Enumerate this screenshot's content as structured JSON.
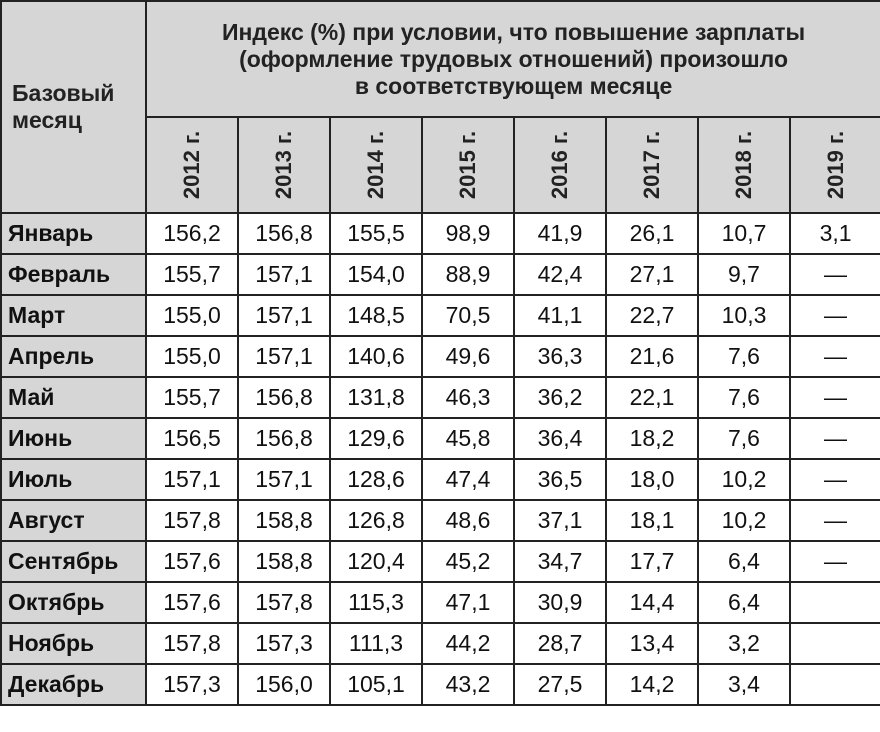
{
  "table": {
    "title_lines": [
      "Индекс (%) при условии, что повышение зарплаты",
      "(оформление трудовых отношений) произошло",
      "в соответствующем месяце"
    ],
    "base_month_lines": [
      "Базовый",
      "месяц"
    ],
    "years": [
      "2012 г.",
      "2013 г.",
      "2014 г.",
      "2015 г.",
      "2016 г.",
      "2017 г.",
      "2018 г.",
      "2019 г."
    ],
    "rows": [
      {
        "month": "Январь",
        "values": [
          "156,2",
          "156,8",
          "155,5",
          "98,9",
          "41,9",
          "26,1",
          "10,7",
          "3,1"
        ]
      },
      {
        "month": "Февраль",
        "values": [
          "155,7",
          "157,1",
          "154,0",
          "88,9",
          "42,4",
          "27,1",
          "9,7",
          "—"
        ]
      },
      {
        "month": "Март",
        "values": [
          "155,0",
          "157,1",
          "148,5",
          "70,5",
          "41,1",
          "22,7",
          "10,3",
          "—"
        ]
      },
      {
        "month": "Апрель",
        "values": [
          "155,0",
          "157,1",
          "140,6",
          "49,6",
          "36,3",
          "21,6",
          "7,6",
          "—"
        ]
      },
      {
        "month": "Май",
        "values": [
          "155,7",
          "156,8",
          "131,8",
          "46,3",
          "36,2",
          "22,1",
          "7,6",
          "—"
        ]
      },
      {
        "month": "Июнь",
        "values": [
          "156,5",
          "156,8",
          "129,6",
          "45,8",
          "36,4",
          "18,2",
          "7,6",
          "—"
        ]
      },
      {
        "month": "Июль",
        "values": [
          "157,1",
          "157,1",
          "128,6",
          "47,4",
          "36,5",
          "18,0",
          "10,2",
          "—"
        ]
      },
      {
        "month": "Август",
        "values": [
          "157,8",
          "158,8",
          "126,8",
          "48,6",
          "37,1",
          "18,1",
          "10,2",
          "—"
        ]
      },
      {
        "month": "Сентябрь",
        "values": [
          "157,6",
          "158,8",
          "120,4",
          "45,2",
          "34,7",
          "17,7",
          "6,4",
          "—"
        ]
      },
      {
        "month": "Октябрь",
        "values": [
          "157,6",
          "157,8",
          "115,3",
          "47,1",
          "30,9",
          "14,4",
          "6,4",
          ""
        ]
      },
      {
        "month": "Ноябрь",
        "values": [
          "157,8",
          "157,3",
          "111,3",
          "44,2",
          "28,7",
          "13,4",
          "3,2",
          ""
        ]
      },
      {
        "month": "Декабрь",
        "values": [
          "157,3",
          "156,0",
          "105,1",
          "43,2",
          "27,5",
          "14,2",
          "3,4",
          ""
        ]
      }
    ]
  }
}
